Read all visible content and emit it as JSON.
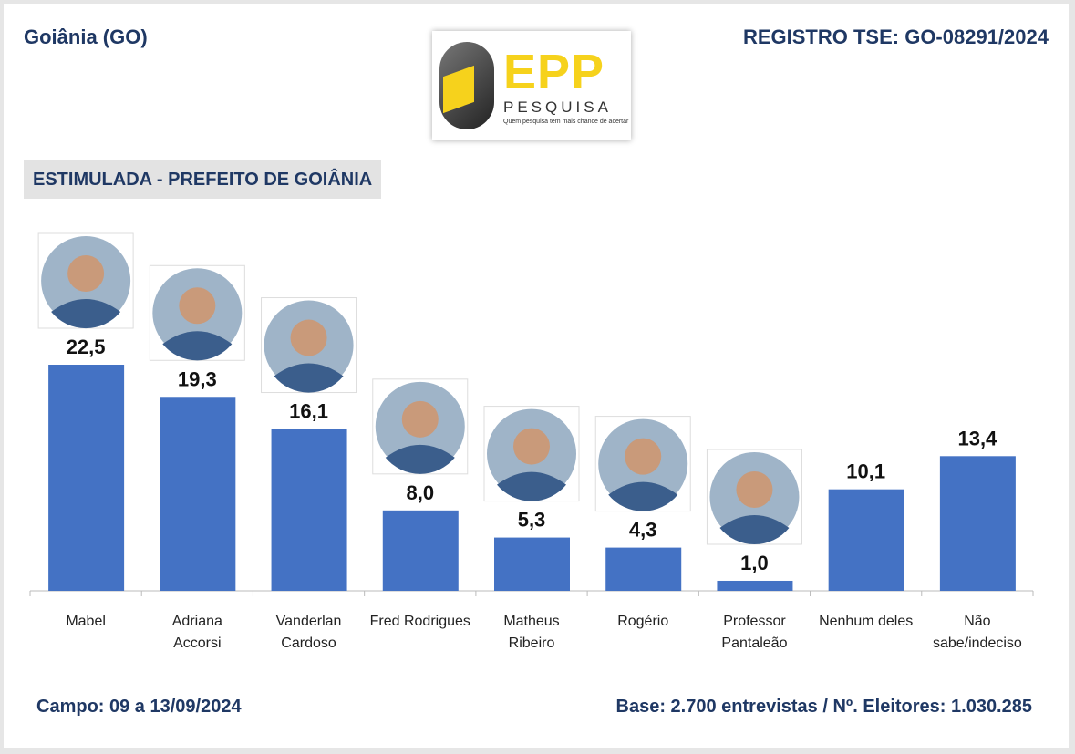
{
  "header": {
    "left": "Goiânia (GO)",
    "right": "REGISTRO TSE: GO-08291/2024",
    "logo": {
      "brand": "EPP",
      "word": "PESQUISA",
      "slogan": "Quem pesquisa tem mais chance de acertar"
    }
  },
  "chart_data": {
    "type": "bar",
    "title": "ESTIMULADA - PREFEITO DE GOIÂNIA",
    "categories": [
      [
        "Mabel"
      ],
      [
        "Adriana",
        "Accorsi"
      ],
      [
        "Vanderlan",
        "Cardoso"
      ],
      [
        "Fred Rodrigues"
      ],
      [
        "Matheus",
        "Ribeiro"
      ],
      [
        "Rogério"
      ],
      [
        "Professor",
        "Pantaleão"
      ],
      [
        "Nenhum deles"
      ],
      [
        "Não",
        "sabe/indeciso"
      ]
    ],
    "values": [
      22.5,
      19.3,
      16.1,
      8.0,
      5.3,
      4.3,
      1.0,
      10.1,
      13.4
    ],
    "value_labels": [
      "22,5",
      "19,3",
      "16,1",
      "8,0",
      "5,3",
      "4,3",
      "1,0",
      "10,1",
      "13,4"
    ],
    "color": "#4472c4"
  },
  "footer": {
    "left": "Campo: 09 a 13/09/2024",
    "right": "Base: 2.700 entrevistas / Nº. Eleitores: 1.030.285"
  }
}
